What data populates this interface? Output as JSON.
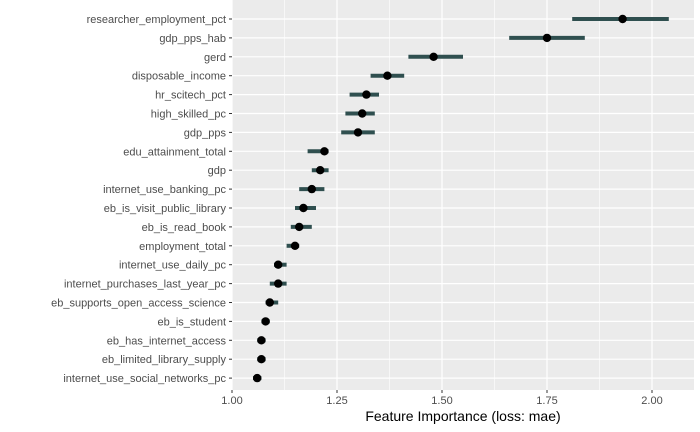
{
  "chart_data": {
    "type": "dot-interval",
    "xlabel": "Feature Importance (loss: mae)",
    "xlim": [
      1.0,
      2.1
    ],
    "x_ticks": [
      1.0,
      1.25,
      1.5,
      1.75,
      2.0
    ],
    "x_tick_labels": [
      "1.00",
      "1.25",
      "1.50",
      "1.75",
      "2.00"
    ],
    "grid": true,
    "colors": {
      "panel": "#EBEBEB",
      "grid": "#FFFFFF",
      "interval": "#2F4F4F",
      "point": "#000000"
    },
    "features": [
      {
        "name": "researcher_employment_pct",
        "value": 1.93,
        "low": 1.81,
        "high": 2.04
      },
      {
        "name": "gdp_pps_hab",
        "value": 1.75,
        "low": 1.66,
        "high": 1.84
      },
      {
        "name": "gerd",
        "value": 1.48,
        "low": 1.42,
        "high": 1.55
      },
      {
        "name": "disposable_income",
        "value": 1.37,
        "low": 1.33,
        "high": 1.41
      },
      {
        "name": "hr_scitech_pct",
        "value": 1.32,
        "low": 1.28,
        "high": 1.35
      },
      {
        "name": "high_skilled_pc",
        "value": 1.31,
        "low": 1.27,
        "high": 1.34
      },
      {
        "name": "gdp_pps",
        "value": 1.3,
        "low": 1.26,
        "high": 1.34
      },
      {
        "name": "edu_attainment_total",
        "value": 1.22,
        "low": 1.18,
        "high": 1.23
      },
      {
        "name": "gdp",
        "value": 1.21,
        "low": 1.19,
        "high": 1.23
      },
      {
        "name": "internet_use_banking_pc",
        "value": 1.19,
        "low": 1.16,
        "high": 1.22
      },
      {
        "name": "eb_is_visit_public_library",
        "value": 1.17,
        "low": 1.15,
        "high": 1.2
      },
      {
        "name": "eb_is_read_book",
        "value": 1.16,
        "low": 1.14,
        "high": 1.19
      },
      {
        "name": "employment_total",
        "value": 1.15,
        "low": 1.13,
        "high": 1.16
      },
      {
        "name": "internet_use_daily_pc",
        "value": 1.11,
        "low": 1.1,
        "high": 1.13
      },
      {
        "name": "internet_purchases_last_year_pc",
        "value": 1.11,
        "low": 1.09,
        "high": 1.13
      },
      {
        "name": "eb_supports_open_access_science",
        "value": 1.09,
        "low": 1.08,
        "high": 1.11
      },
      {
        "name": "eb_is_student",
        "value": 1.08,
        "low": 1.07,
        "high": 1.09
      },
      {
        "name": "eb_has_internet_access",
        "value": 1.07,
        "low": 1.06,
        "high": 1.08
      },
      {
        "name": "eb_limited_library_supply",
        "value": 1.07,
        "low": 1.06,
        "high": 1.08
      },
      {
        "name": "internet_use_social_networks_pc",
        "value": 1.06,
        "low": 1.05,
        "high": 1.07
      }
    ]
  }
}
